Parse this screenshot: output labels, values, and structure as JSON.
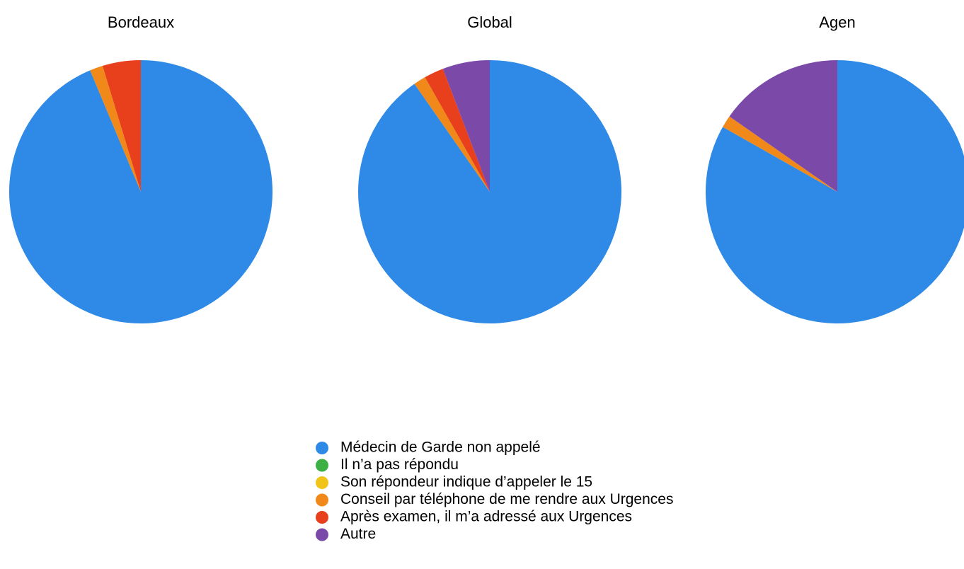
{
  "chart_data": [
    {
      "type": "pie",
      "title": "Bordeaux",
      "values": [
        93.7,
        0,
        0,
        1.6,
        4.7,
        0
      ]
    },
    {
      "type": "pie",
      "title": "Global",
      "values": [
        90.3,
        0,
        0,
        1.5,
        2.4,
        5.8
      ]
    },
    {
      "type": "pie",
      "title": "Agen",
      "values": [
        83.2,
        0,
        0,
        1.5,
        0,
        15.3
      ]
    }
  ],
  "legend": {
    "labels": [
      "Médecin de Garde non appelé",
      "Il n’a pas répondu",
      "Son répondeur indique d’appeler le 15",
      "Conseil par téléphone de me rendre aux Urgences",
      "Après examen, il m’a adressé aux Urgences",
      "Autre"
    ],
    "colors": [
      "#2e8ae6",
      "#3cb043",
      "#f0c419",
      "#f0891a",
      "#e8401c",
      "#7b4aa8"
    ]
  }
}
